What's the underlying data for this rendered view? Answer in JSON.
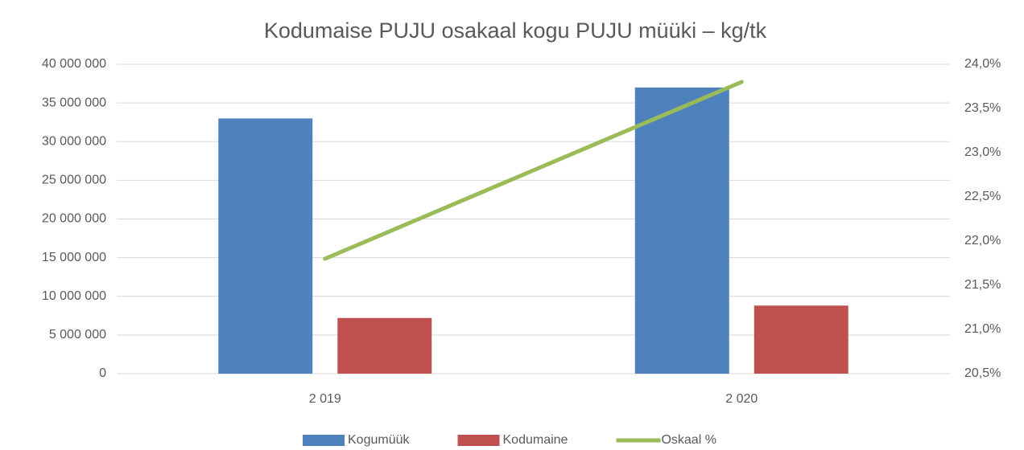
{
  "chart_data": {
    "type": "bar",
    "title": "Kodumaise PUJU osakaal kogu PUJU müüki – kg/tk",
    "categories": [
      "2 019",
      "2 020"
    ],
    "series": [
      {
        "name": "Kogumüük",
        "color": "#4f81bd",
        "values": [
          33000000,
          37000000
        ]
      },
      {
        "name": "Kodumaine",
        "color": "#c0504d",
        "values": [
          7200000,
          8800000
        ]
      },
      {
        "name": "Oskaal %",
        "color": "#9bbb59",
        "type": "line",
        "axis": "y2",
        "values": [
          21.8,
          23.8
        ]
      }
    ],
    "ylim": [
      0,
      40000000
    ],
    "yticks": [
      0,
      {
        "value": 5000000,
        "label": "5 000 000"
      },
      {
        "value": 10000000,
        "label": "10 000 000"
      },
      {
        "value": 15000000,
        "label": "15 000 000"
      },
      {
        "value": 20000000,
        "label": "20 000 000"
      },
      {
        "value": 25000000,
        "label": "25 000 000"
      },
      {
        "value": 30000000,
        "label": "30 000 000"
      },
      {
        "value": 35000000,
        "label": "35 000 000"
      },
      {
        "value": 40000000,
        "label": "40 000 000"
      }
    ],
    "y2lim": [
      20.5,
      24.0
    ],
    "y2ticks": [
      {
        "value": 20.5,
        "label": "20,5%"
      },
      {
        "value": 21.0,
        "label": "21,0%"
      },
      {
        "value": 21.5,
        "label": "21,5%"
      },
      {
        "value": 22.0,
        "label": "22,0%"
      },
      {
        "value": 22.5,
        "label": "22,5%"
      },
      {
        "value": 23.0,
        "label": "23,0%"
      },
      {
        "value": 23.5,
        "label": "23,5%"
      },
      {
        "value": 24.0,
        "label": "24,0%"
      }
    ],
    "grid": true,
    "legend": "bottom"
  }
}
